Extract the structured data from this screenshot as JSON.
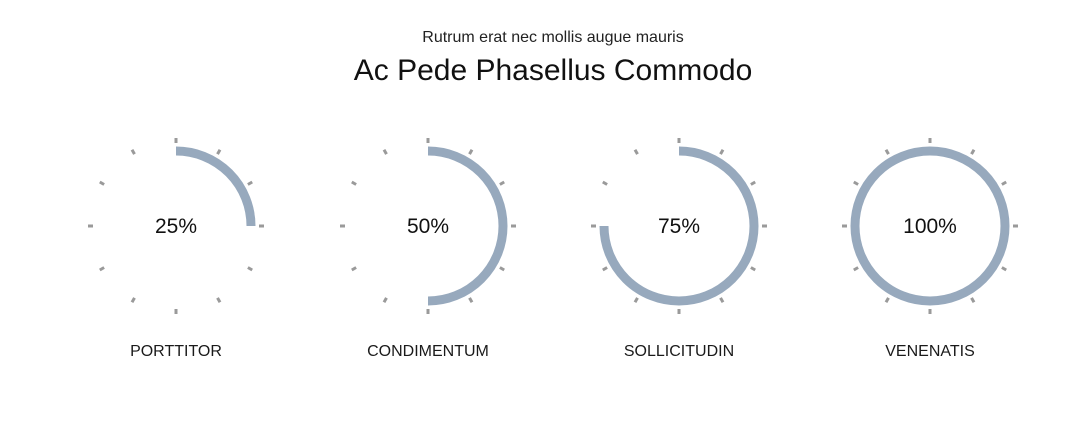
{
  "header": {
    "subtitle": "Rutrum erat nec mollis augue mauris",
    "title": "Ac Pede Phasellus Commodo"
  },
  "colors": {
    "arc": "#97a9bd",
    "tick": "#9a9a9a"
  },
  "chart_data": {
    "type": "radial-progress",
    "unit": "%",
    "max": 100,
    "items": [
      {
        "label": "PORTTITOR",
        "value": 25,
        "value_label": "25%"
      },
      {
        "label": "CONDIMENTUM",
        "value": 50,
        "value_label": "50%"
      },
      {
        "label": "SOLLICITUDIN",
        "value": 75,
        "value_label": "75%"
      },
      {
        "label": "VENENATIS",
        "value": 100,
        "value_label": "100%"
      }
    ]
  }
}
